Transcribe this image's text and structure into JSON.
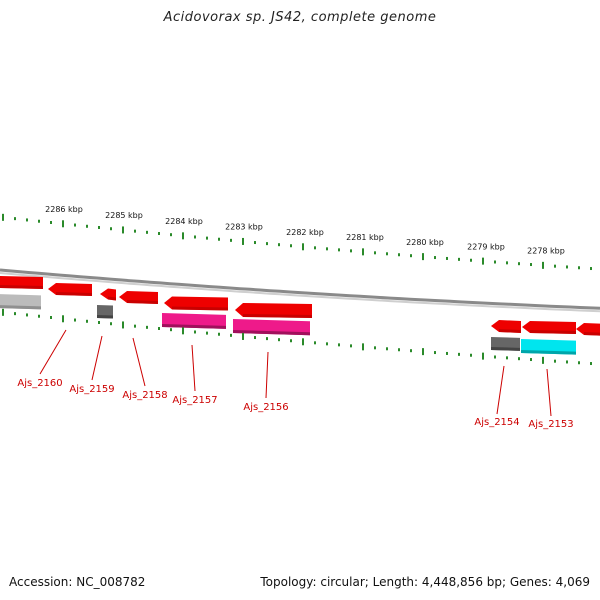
{
  "title": "Acidovorax sp. JS42, complete genome",
  "footer": {
    "accession": "Accession: NC_008782",
    "summary": "Topology: circular; Length: 4,448,856 bp; Genes: 4,069"
  },
  "scale_labels": [
    "2286 kbp",
    "2285 kbp",
    "2284 kbp",
    "2283 kbp",
    "2282 kbp",
    "2281 kbp",
    "2280 kbp",
    "2279 kbp",
    "2278 kbp"
  ],
  "gene_labels": [
    "Ajs_2160",
    "Ajs_2159",
    "Ajs_2158",
    "Ajs_2157",
    "Ajs_2156",
    "Ajs_2154",
    "Ajs_2153"
  ],
  "colors": {
    "backbone": "#8a8a8a",
    "tick": "#2a8a2a",
    "gene_red": "#ee0000",
    "gene_magenta": "#ee1a8a",
    "gene_cyan": "#00e5ee",
    "gene_gray": "#666666",
    "gene_lightgray": "#bbbbbb",
    "label": "#cc0000"
  }
}
